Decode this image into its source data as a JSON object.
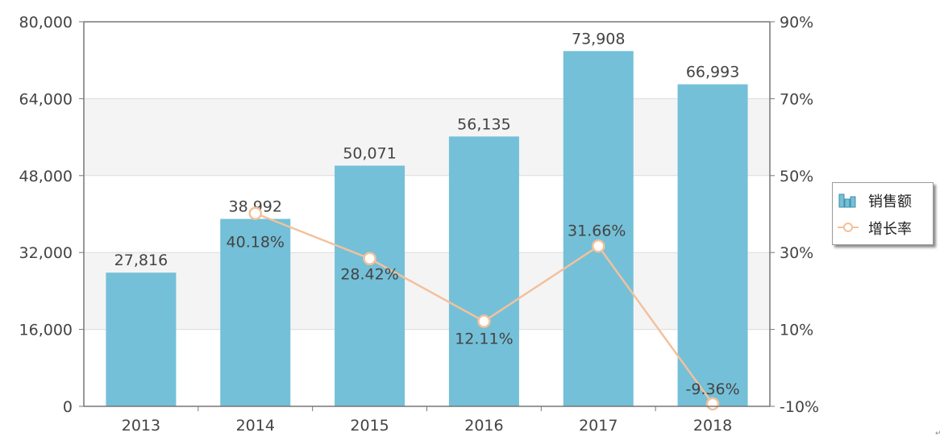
{
  "chart_data": {
    "type": "bar",
    "categories": [
      "2013",
      "2014",
      "2015",
      "2016",
      "2017",
      "2018"
    ],
    "series": [
      {
        "name": "销售额",
        "type": "bar",
        "axis": "left",
        "color": "#74c0d8",
        "values": [
          27816,
          38992,
          50071,
          56135,
          73908,
          66993
        ],
        "labels": [
          "27,816",
          "38,992",
          "50,071",
          "56,135",
          "73,908",
          "66,993"
        ]
      },
      {
        "name": "增长率",
        "type": "line",
        "axis": "right",
        "color": "#f3c19c",
        "values": [
          null,
          40.18,
          28.42,
          12.11,
          31.66,
          -9.36
        ],
        "labels": [
          "",
          "40.18%",
          "28.42%",
          "12.11%",
          "31.66%",
          "-9.36%"
        ]
      }
    ],
    "y_left": {
      "ylim": [
        0,
        80000
      ],
      "ticks": [
        0,
        16000,
        32000,
        48000,
        64000,
        80000
      ],
      "tick_labels": [
        "0",
        "16,000",
        "32,000",
        "48,000",
        "64,000",
        "80,000"
      ]
    },
    "y_right": {
      "ylim": [
        -10,
        90
      ],
      "ticks": [
        -10,
        10,
        30,
        50,
        70,
        90
      ],
      "tick_labels": [
        "-10%",
        "10%",
        "30%",
        "50%",
        "70%",
        "90%"
      ]
    },
    "grid": true,
    "alternate_band_color": "#f4f4f4",
    "legend_position": "right",
    "title": "",
    "xlabel": "",
    "ylabel": ""
  },
  "legend": {
    "items": [
      {
        "label": "销售额",
        "icon": "bar-series-icon"
      },
      {
        "label": "增长率",
        "icon": "line-series-icon"
      }
    ]
  },
  "corner_mark": "↵"
}
